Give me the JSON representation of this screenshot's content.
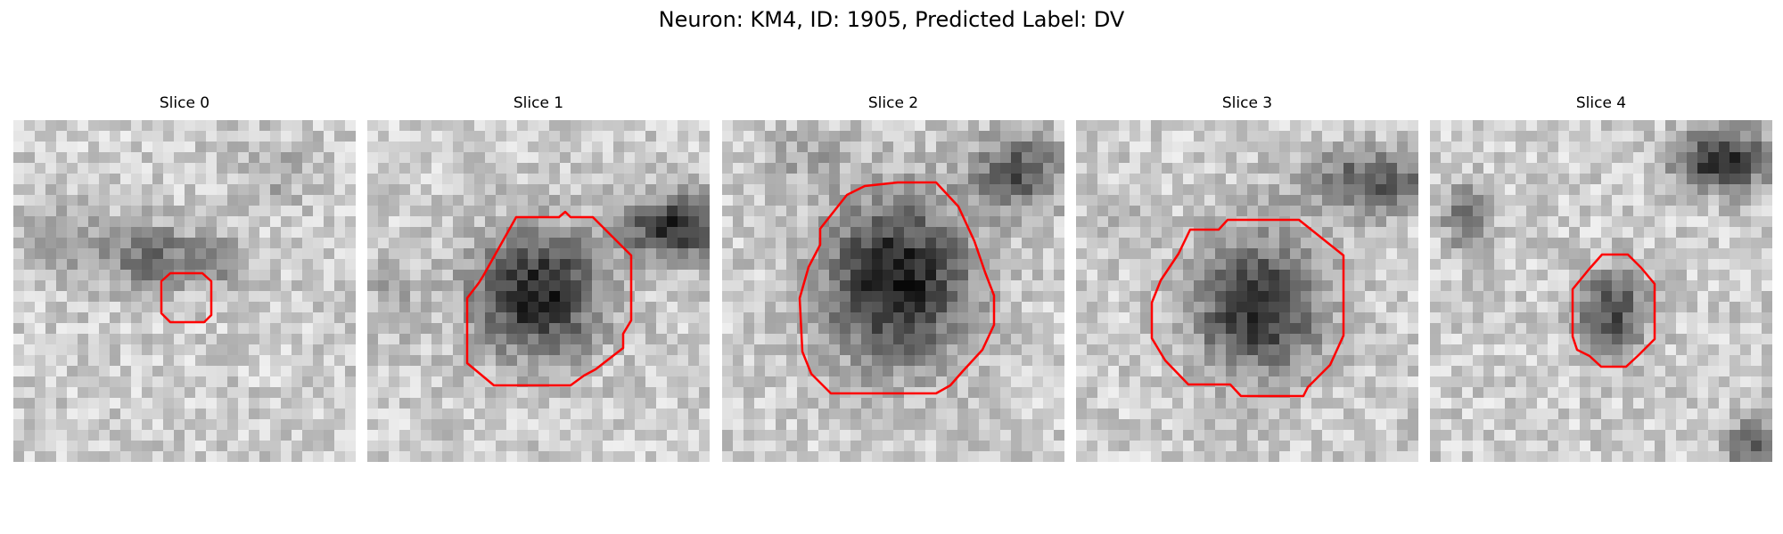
{
  "figure": {
    "title": "Neuron: KM4, ID: 1905, Predicted Label: DV"
  },
  "panels": [
    {
      "title": "Slice 0"
    },
    {
      "title": "Slice 1"
    },
    {
      "title": "Slice 2"
    },
    {
      "title": "Slice 3"
    },
    {
      "title": "Slice 4"
    }
  ],
  "colors": {
    "contour": "#ff0000",
    "colormap": "grayscale"
  }
}
